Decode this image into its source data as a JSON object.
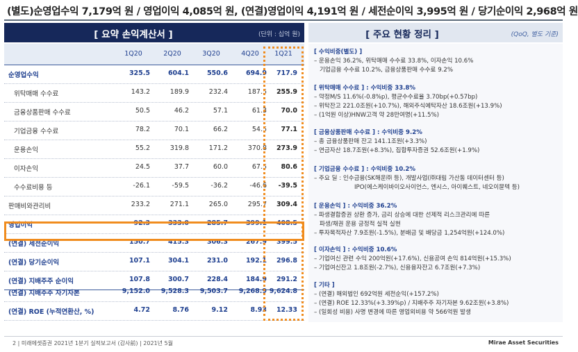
{
  "headline": "(별도)순영업수익 7,179억 원 / 영업이익 4,085억 원, (연결)영업이익 4,191억 원 / 세전순이익 3,995억 원 / 당기순이익 2,968억 원",
  "left_panel": {
    "title": "[ 요약 손익계산서 ]",
    "unit": "(단위 : 십억 원)",
    "columns": [
      "1Q20",
      "2Q20",
      "3Q20",
      "4Q20",
      "1Q21"
    ],
    "rows": [
      {
        "label": "순영업수익",
        "values": [
          "325.5",
          "604.1",
          "550.6",
          "694.9",
          "717.9"
        ]
      },
      {
        "label": "위탁매매 수수료",
        "values": [
          "143.2",
          "189.9",
          "232.4",
          "187.5",
          "255.9"
        ]
      },
      {
        "label": "금융상품판매 수수료",
        "values": [
          "50.5",
          "46.2",
          "57.1",
          "61.3",
          "70.0"
        ]
      },
      {
        "label": "기업금융 수수료",
        "values": [
          "78.2",
          "70.1",
          "66.2",
          "54.5",
          "77.1"
        ]
      },
      {
        "label": "운용손익",
        "values": [
          "55.2",
          "319.8",
          "171.2",
          "370.8",
          "273.9"
        ]
      },
      {
        "label": "이자손익",
        "values": [
          "24.5",
          "37.7",
          "60.0",
          "67.5",
          "80.6"
        ]
      },
      {
        "label": "수수료비용 등",
        "values": [
          "-26.1",
          "-59.5",
          "-36.2",
          "-46.6",
          "-39.5"
        ]
      },
      {
        "label": "판매비와관리비",
        "values": [
          "233.2",
          "271.1",
          "265.0",
          "295.7",
          "309.4"
        ]
      },
      {
        "label": "영업이익",
        "values": [
          "92.3",
          "333.0",
          "285.7",
          "399.1",
          "408.5"
        ]
      },
      {
        "label": "(연결) 세전순이익",
        "values": [
          "150.7",
          "415.3",
          "306.3",
          "267.9",
          "399.5"
        ]
      },
      {
        "label": "(연결) 당기순이익",
        "values": [
          "107.1",
          "304.1",
          "231.0",
          "192.1",
          "296.8"
        ]
      },
      {
        "label": "(연결) 지배주주 순이익",
        "values": [
          "107.8",
          "300.7",
          "228.4",
          "184.9",
          "291.2"
        ]
      },
      {
        "label": "(연결) 지배주주 자기자본",
        "values": [
          "9,152.0",
          "9,528.3",
          "9,503.7",
          "9,268.9",
          "9,624.8"
        ]
      },
      {
        "label": "(연결) ROE (누적연환산, %)",
        "values": [
          "4.72",
          "8.76",
          "9.12",
          "8.93",
          "12.33"
        ]
      }
    ]
  },
  "right_panel": {
    "title": "[ 주요 현황 정리 ]",
    "note": "(QoQ, 별도 기준)",
    "sections": [
      {
        "title": "[ 수익비중(별도) ]",
        "lines": [
          "– 운용손익 36.2%, 위탁매매 수수료 33.8%, 이자손익 10.6%",
          "기업금융 수수료 10.2%, 금융상품판매 수수료 9.2%"
        ]
      },
      {
        "title": "[ 위탁매매 수수료 ] : 수익비중 33.8%",
        "lines": [
          "– 약정M/S 11.6%(-0.8%p), 평균수수료율 3.70bp(+0.57bp)",
          "– 위탁잔고 221.0조원(+10.7%), 해외주식예탁자산 18.6조원(+13.9%)",
          "– (1억원 이상)HNW고객 약 28만여명(+11.5%)"
        ]
      },
      {
        "title": "[ 금융상품판매 수수료 ] : 수익비중 9.2%",
        "lines": [
          "– 총 금융상품판매 잔고 141.1조원(+3.3%)",
          "– 연금자산 18.7조원(+8.3%), 집합투자증권 52.6조원(+1.9%)"
        ]
      },
      {
        "title": "[ 기업금융 수수료 ] : 수익비중 10.2%",
        "lines": [
          "– 주요 딜 : 인수금융(SK해운㈜ 등), 개발사업(㈜대림 가산동 데이터센터 등)",
          "IPO(에스케이바이오사이언스, 엔시스, 아이퀘스트, 네오이뮨텍 등)"
        ]
      },
      {
        "title": "[ 운용손익 ] : 수익비중 36.2%",
        "lines": [
          "– 파생결합증권 상환 증가, 금리 상승에 대한 선제적 리스크관리에 따른",
          "파생/채권 운용 긍정적 실적 실현",
          "– 투자목적자산 7.9조원(-1.5%), 분배금 및 배당금 1,254억원(+124.0%)"
        ]
      },
      {
        "title": "[ 이자손익 ] : 수익비중 10.6%",
        "lines": [
          "– 기업여신 관련 수익 200억원(+17.6%), 신용공여 손익 814억원(+15.3%)",
          "– 기업여신잔고 1.8조원(-2.7%), 신용융자잔고 6.7조원(+7.3%)"
        ]
      },
      {
        "title": "[ 기타 ]",
        "lines": [
          "– (연결) 해외법인 692억원 세전순익(+157.2%)",
          "– (연결) ROE 12.33%(+3.39%p) / 지배주주 자기자본 9.62조원(+3.8%)",
          "– (일회성 비용) 사명 변경에 따른 영업외비용 약 566억원 발생"
        ]
      }
    ]
  },
  "footer": {
    "left": "2  |  미래에셋증권 2021년 1분기 실적보고서 (감사前)  |  2021년 5월",
    "brand": "Mirae Asset Securities"
  },
  "colors": {
    "navy": "#16285a",
    "accent_blue": "#1e3f8f",
    "orange": "#f08c1e"
  }
}
